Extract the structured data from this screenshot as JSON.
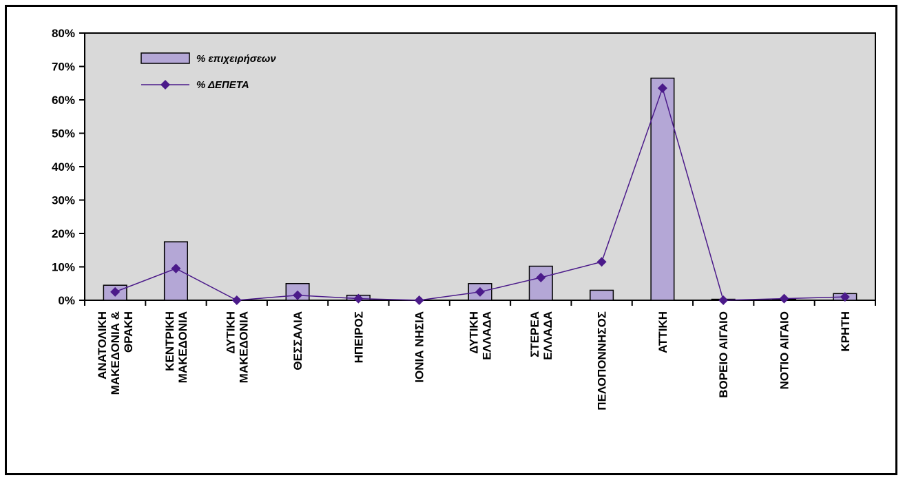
{
  "chart_data": {
    "type": "bar",
    "categories": [
      [
        "ΑΝΑΤΟΛΙΚΗ",
        "ΜΑΚΕΔΟΝΙΑ &",
        "ΘΡΑΚΗ"
      ],
      [
        "ΚΕΝΤΡΙΚΗ",
        "ΜΑΚΕΔΟΝΙΑ"
      ],
      [
        "ΔΥΤΙΚΗ",
        "ΜΑΚΕΔΟΝΙΑ"
      ],
      [
        "ΘΕΣΣΑΛΙΑ"
      ],
      [
        "ΗΠΕΙΡΟΣ"
      ],
      [
        "ΙΟΝΙΑ ΝΗΣΙΑ"
      ],
      [
        "ΔΥΤΙΚΗ",
        "ΕΛΛΑΔΑ"
      ],
      [
        "ΣΤΕΡΕΑ",
        "ΕΛΛΑΔΑ"
      ],
      [
        "ΠΕΛΟΠΟΝΝΗΣΟΣ"
      ],
      [
        "ΑΤΤΙΚΗ"
      ],
      [
        "ΒΟΡΕΙΟ ΑΙΓΑΙΟ"
      ],
      [
        "ΝΟΤΙΟ ΑΙΓΑΙΟ"
      ],
      [
        "ΚΡΗΤΗ"
      ]
    ],
    "series": [
      {
        "name": "% επιχειρήσεων",
        "kind": "bar",
        "color": "#b4a7d6",
        "values": [
          4.5,
          17.5,
          0.0,
          5.0,
          1.5,
          0.0,
          5.0,
          10.2,
          3.0,
          66.5,
          0.3,
          0.3,
          2.0
        ]
      },
      {
        "name": "% ΔΕΠΕΤΑ",
        "kind": "line",
        "color": "#4b1a8a",
        "values": [
          2.5,
          9.5,
          0.0,
          1.5,
          0.5,
          0.0,
          2.5,
          6.8,
          11.5,
          63.5,
          0.0,
          0.5,
          1.0
        ]
      }
    ],
    "yticks": [
      "0%",
      "10%",
      "20%",
      "30%",
      "40%",
      "50%",
      "60%",
      "70%",
      "80%"
    ],
    "ylim": [
      0,
      80
    ],
    "legend_position": "top-left",
    "plot_background": "#d9d9d9",
    "grid": false
  }
}
